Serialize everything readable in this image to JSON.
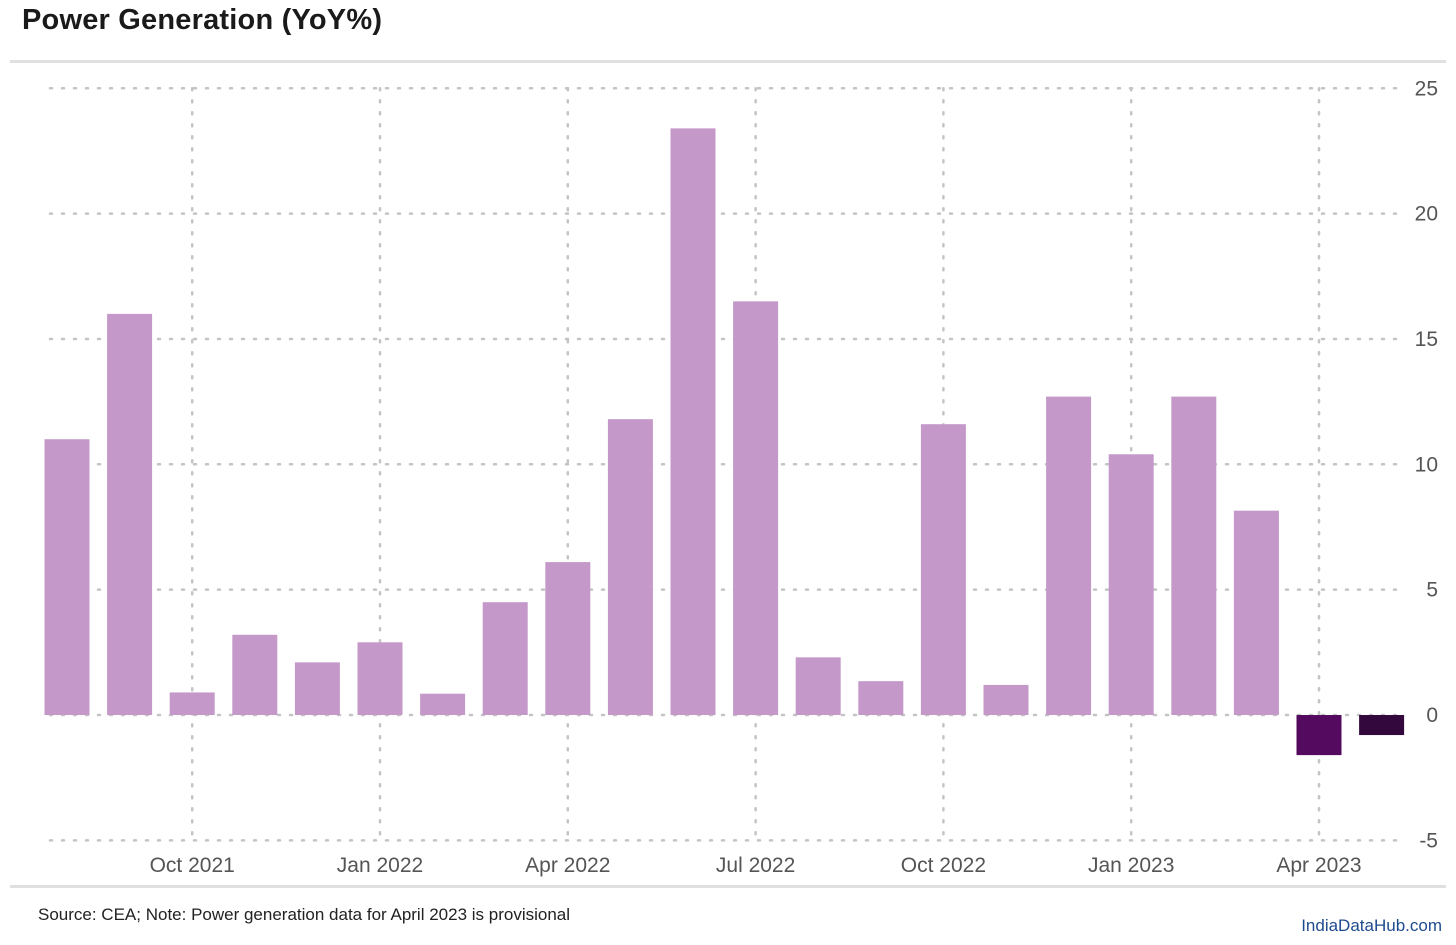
{
  "title": "Power Generation (YoY%)",
  "footer": {
    "source": "Source: CEA; Note: Power generation data for April 2023 is provisional",
    "brand": "IndiaDataHub.com"
  },
  "colors": {
    "bar": "#c499c9",
    "bar_highlight_1": "#540a5e",
    "bar_highlight_2": "#33093d",
    "grid": "#c4c4c4",
    "rule": "#e0e0e0",
    "tick_text": "#555555",
    "brand_text": "#1e4b8f"
  },
  "chart_data": {
    "type": "bar",
    "title": "Power Generation (YoY%)",
    "xlabel": "",
    "ylabel": "",
    "y_axis_side": "right",
    "ylim": [
      -5,
      25
    ],
    "yticks": [
      -5,
      0,
      5,
      10,
      15,
      20,
      25
    ],
    "grid": true,
    "categories": [
      "Aug 2021",
      "Sep 2021",
      "Oct 2021",
      "Nov 2021",
      "Dec 2021",
      "Jan 2022",
      "Feb 2022",
      "Mar 2022",
      "Apr 2022",
      "May 2022",
      "Jun 2022",
      "Jul 2022",
      "Aug 2022",
      "Sep 2022",
      "Oct 2022",
      "Nov 2022",
      "Dec 2022",
      "Jan 2023",
      "Feb 2023",
      "Mar 2023",
      "Apr 2023",
      "May 2023"
    ],
    "values": [
      11.0,
      16.0,
      0.9,
      3.2,
      2.1,
      2.9,
      0.85,
      4.5,
      6.1,
      11.8,
      23.4,
      16.5,
      2.3,
      1.35,
      11.6,
      1.2,
      12.7,
      10.4,
      12.7,
      8.15,
      -1.6,
      -0.8
    ],
    "bar_colors": [
      "bar",
      "bar",
      "bar",
      "bar",
      "bar",
      "bar",
      "bar",
      "bar",
      "bar",
      "bar",
      "bar",
      "bar",
      "bar",
      "bar",
      "bar",
      "bar",
      "bar",
      "bar",
      "bar",
      "bar",
      "bar_highlight_1",
      "bar_highlight_2"
    ],
    "x_tick_labels": [
      {
        "label": "Oct 2021",
        "category": "Oct 2021"
      },
      {
        "label": "Jan 2022",
        "category": "Jan 2022"
      },
      {
        "label": "Apr 2022",
        "category": "Apr 2022"
      },
      {
        "label": "Jul 2022",
        "category": "Jul 2022"
      },
      {
        "label": "Oct 2022",
        "category": "Oct 2022"
      },
      {
        "label": "Jan 2023",
        "category": "Jan 2023"
      },
      {
        "label": "Apr 2023",
        "category": "Apr 2023"
      }
    ]
  }
}
